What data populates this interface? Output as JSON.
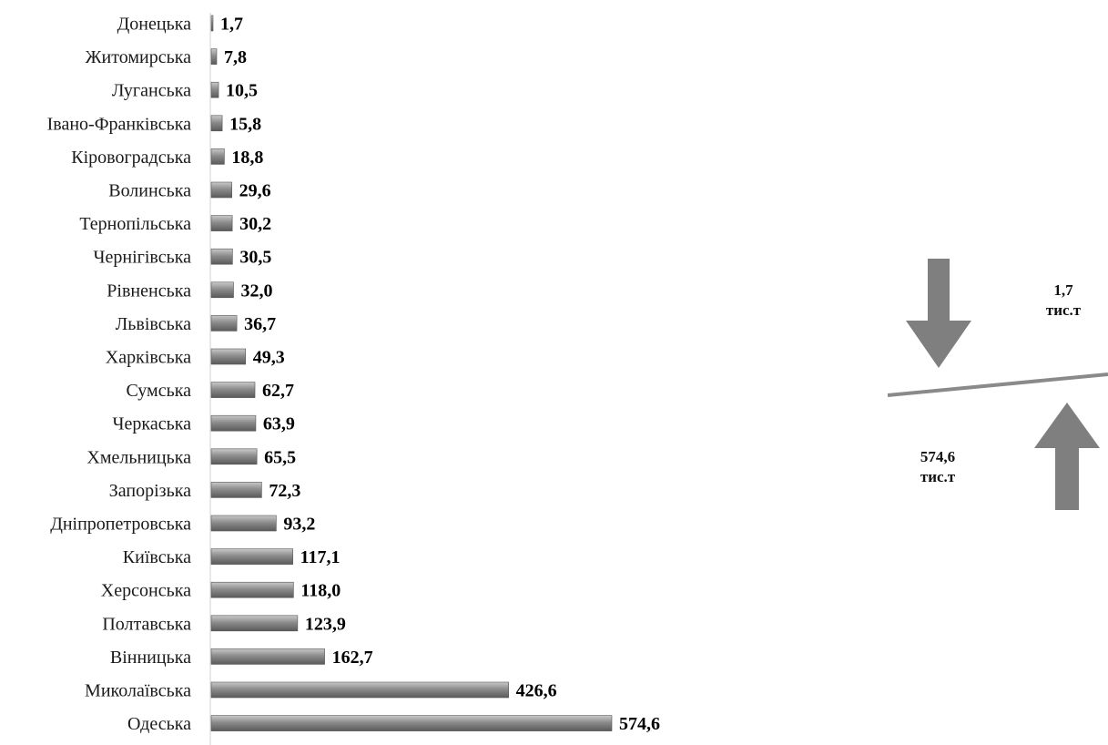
{
  "chart_data": {
    "type": "bar",
    "orientation": "horizontal",
    "categories": [
      "Донецька",
      "Житомирська",
      "Луганська",
      "Івано-Франківська",
      "Кіровоградська",
      "Волинська",
      "Тернопільська",
      "Чернігівська",
      "Рівненська",
      "Львівська",
      "Харківська",
      "Сумська",
      "Черкаська",
      "Хмельницька",
      "Запорізька",
      "Дніпропетровська",
      "Київська",
      "Херсонська",
      "Полтавська",
      "Вінницька",
      "Миколаївська",
      "Одеська"
    ],
    "values": [
      1.7,
      7.8,
      10.5,
      15.8,
      18.8,
      29.6,
      30.2,
      30.5,
      32.0,
      36.7,
      49.3,
      62.7,
      63.9,
      65.5,
      72.3,
      93.2,
      117.1,
      118.0,
      123.9,
      162.7,
      426.6,
      574.6
    ],
    "value_labels": [
      "1,7",
      "7,8",
      "10,5",
      "15,8",
      "18,8",
      "29,6",
      "30,2",
      "30,5",
      "32,0",
      "36,7",
      "49,3",
      "62,7",
      "63,9",
      "65,5",
      "72,3",
      "93,2",
      "117,1",
      "118,0",
      "123,9",
      "162,7",
      "426,6",
      "574,6"
    ],
    "bar_color": "#7a7a7a",
    "grid": false
  },
  "annotations": {
    "min": {
      "value": "1,7",
      "unit": "тис.т"
    },
    "max": {
      "value": "574,6",
      "unit": "тис.т"
    },
    "arrow_color": "#7f7f7f"
  }
}
